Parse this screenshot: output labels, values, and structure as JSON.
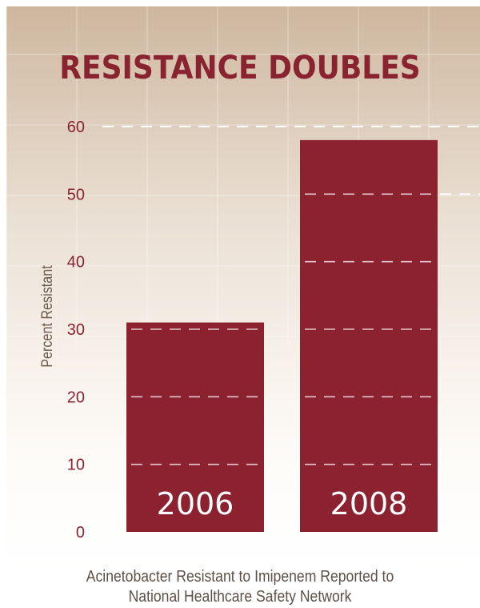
{
  "chart_data": {
    "type": "bar",
    "title": "RESISTANCE DOUBLES",
    "ylabel": "Percent  Resistant",
    "caption_line1": "Acinetobacter Resistant to Imipenem Reported to",
    "caption_line2": "National Healthcare Safety Network",
    "categories": [
      "2006",
      "2008"
    ],
    "values": [
      31,
      58
    ],
    "ylim": [
      0,
      60
    ],
    "yticks": [
      "0",
      "10",
      "20",
      "30",
      "40",
      "50",
      "60"
    ],
    "grid": true,
    "colors": {
      "bar": "#8c2230",
      "title": "#8a2330",
      "tick": "#8a2330",
      "bar_label": "#ffffff",
      "axis_label": "#6e5a4a"
    }
  }
}
